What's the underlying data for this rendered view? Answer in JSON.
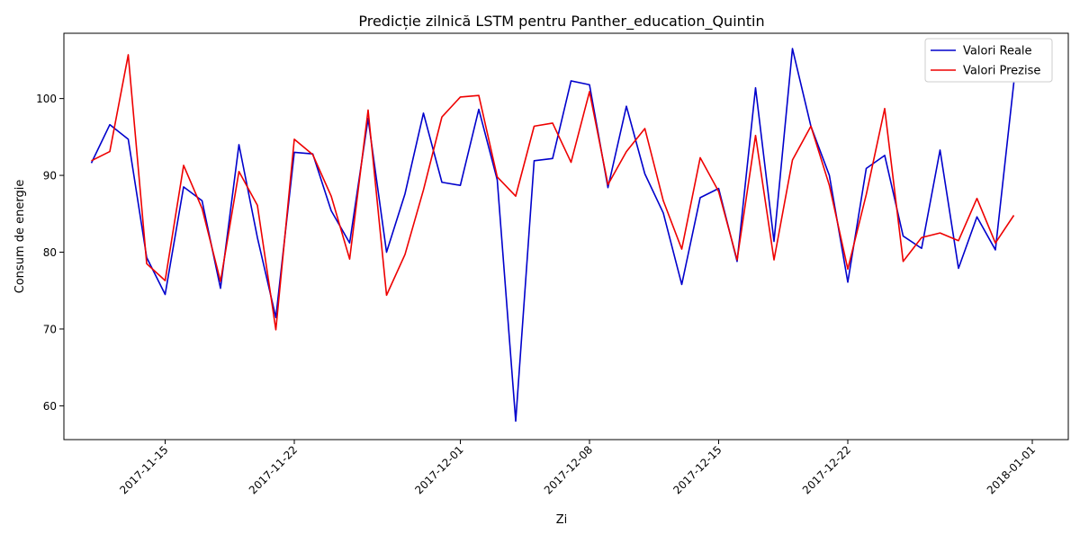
{
  "chart_data": {
    "type": "line",
    "title": "Predicție zilnică LSTM pentru Panther_education_Quintin",
    "xlabel": "Zi",
    "ylabel": "Consum de energie",
    "x": [
      "2017-11-11",
      "2017-11-12",
      "2017-11-13",
      "2017-11-14",
      "2017-11-15",
      "2017-11-16",
      "2017-11-17",
      "2017-11-18",
      "2017-11-19",
      "2017-11-20",
      "2017-11-21",
      "2017-11-22",
      "2017-11-23",
      "2017-11-24",
      "2017-11-25",
      "2017-11-26",
      "2017-11-27",
      "2017-11-28",
      "2017-11-29",
      "2017-11-30",
      "2017-12-01",
      "2017-12-02",
      "2017-12-03",
      "2017-12-04",
      "2017-12-05",
      "2017-12-06",
      "2017-12-07",
      "2017-12-08",
      "2017-12-09",
      "2017-12-10",
      "2017-12-11",
      "2017-12-12",
      "2017-12-13",
      "2017-12-14",
      "2017-12-15",
      "2017-12-16",
      "2017-12-17",
      "2017-12-18",
      "2017-12-19",
      "2017-12-20",
      "2017-12-21",
      "2017-12-22",
      "2017-12-23",
      "2017-12-24",
      "2017-12-25",
      "2017-12-26",
      "2017-12-27",
      "2017-12-28",
      "2017-12-29",
      "2017-12-30",
      "2017-12-31"
    ],
    "series": [
      {
        "name": "Valori Reale",
        "color": "#0000cc",
        "values": [
          91.6,
          96.6,
          94.7,
          79.3,
          74.5,
          88.5,
          86.7,
          75.3,
          94.0,
          81.9,
          71.5,
          93.0,
          92.8,
          85.4,
          81.2,
          97.4,
          80.0,
          87.6,
          98.1,
          89.1,
          88.7,
          98.6,
          89.4,
          58.0,
          91.9,
          92.2,
          102.3,
          101.8,
          88.4,
          99.0,
          90.2,
          85.1,
          75.8,
          87.1,
          88.3,
          78.8,
          101.4,
          81.4,
          106.5,
          96.4,
          90.0,
          76.1,
          90.9,
          92.6,
          82.1,
          80.5,
          93.3,
          77.9,
          84.6,
          80.3,
          102.1
        ]
      },
      {
        "name": "Valori Prezise",
        "color": "#ee0000",
        "values": [
          91.9,
          93.1,
          105.7,
          78.5,
          76.3,
          91.3,
          85.7,
          76.2,
          90.5,
          86.1,
          69.9,
          94.7,
          92.7,
          87.3,
          79.1,
          98.5,
          74.4,
          79.7,
          88.1,
          97.6,
          100.2,
          100.4,
          89.8,
          87.3,
          96.4,
          96.8,
          91.7,
          100.9,
          88.8,
          93.1,
          96.1,
          86.7,
          80.4,
          92.3,
          87.9,
          79.0,
          95.2,
          79.0,
          92.0,
          96.4,
          88.7,
          77.8,
          87.5,
          98.7,
          78.8,
          81.9,
          82.5,
          81.5,
          87.0,
          81.2,
          84.8
        ]
      }
    ],
    "xticks": [
      "2017-11-15",
      "2017-11-22",
      "2017-12-01",
      "2017-12-08",
      "2017-12-15",
      "2017-12-22",
      "2018-01-01"
    ],
    "yticks": [
      60,
      70,
      80,
      90,
      100
    ],
    "ylim": [
      55.6,
      108.5
    ],
    "xlim": [
      "2017-11-10",
      "2018-01-01"
    ],
    "legend": "top-right",
    "grid": false
  }
}
